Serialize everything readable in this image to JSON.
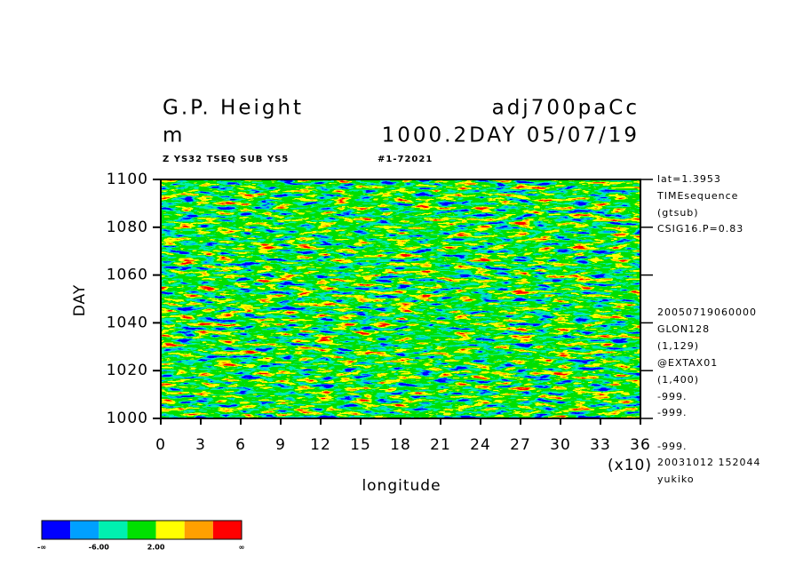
{
  "chart_data": {
    "type": "heatmap",
    "title": "G.P. Height",
    "title_right": "adj700paCc",
    "subtitle": "m",
    "subtitle_right": "1000.2DAY 05/07/19",
    "info": "Z YS32 TSEQ SUB YS5",
    "info_right": "#1-72021",
    "x_label": "longitude",
    "x_scale_label": "(x10)",
    "y_label": "DAY",
    "xlim": [
      0,
      36
    ],
    "xticks": [
      0,
      3,
      6,
      9,
      12,
      15,
      18,
      21,
      24,
      27,
      30,
      33,
      36
    ],
    "ylim": [
      1000,
      1100
    ],
    "yticks": [
      1000,
      1020,
      1040,
      1060,
      1080,
      1100
    ],
    "side_notes": [
      "lat=1.3953",
      "TIMEsequence",
      "(gtsub)",
      "CSIG16.P=0.83",
      "20050719060000",
      "GLON128",
      "(1,129)",
      "@EXTAX01",
      "(1,400)",
      "-999.",
      "-999.",
      "-999.",
      "20031012 152044",
      "yukiko"
    ],
    "colors": [
      "#0000ff",
      "#00a0ff",
      "#00f0b0",
      "#00e000",
      "#ffff00",
      "#ffa000",
      "#ff0000"
    ],
    "colorbar_labels": [
      "-∞",
      "-6.00",
      "2.00",
      "∞"
    ]
  }
}
